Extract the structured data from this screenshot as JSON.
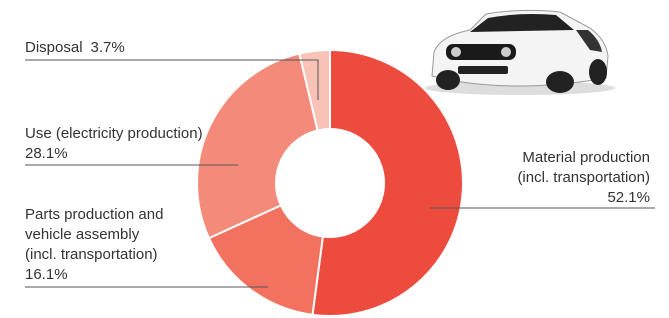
{
  "chart_data": {
    "type": "pie",
    "donut": true,
    "categories": [
      "Material production\n(incl. transportation)",
      "Parts production and\nvehicle assembly\n(incl. transportation)",
      "Use (electricity production)",
      "Disposal"
    ],
    "values": [
      52.1,
      16.1,
      28.1,
      3.7
    ],
    "value_labels": [
      "52.1%",
      "16.1%",
      "28.1%",
      "3.7%"
    ],
    "colors": [
      "#ee4b3f",
      "#f2725f",
      "#f48b7a",
      "#f8c3b6"
    ]
  }
}
